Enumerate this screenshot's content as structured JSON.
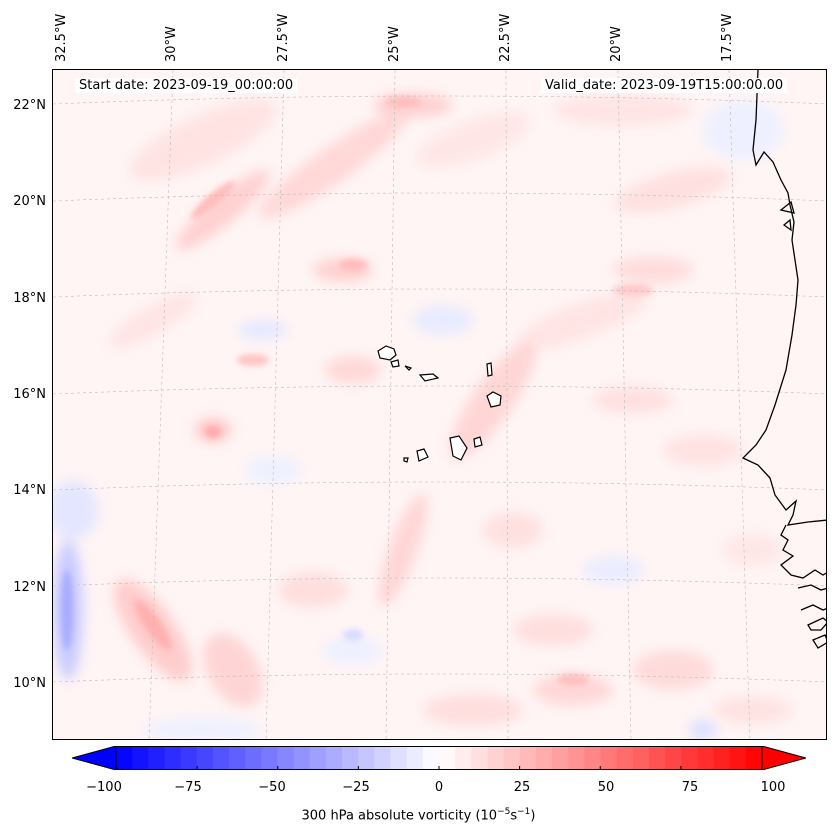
{
  "map": {
    "start_date": "Start date: 2023-09-19_00:00:00",
    "valid_date": "Valid_date: 2023-09-19T15:00:00.00",
    "longitude_labels": [
      "32.5°W",
      "30°W",
      "27.5°W",
      "25°W",
      "22.5°W",
      "20°W",
      "17.5°W"
    ],
    "latitude_labels": [
      "22°N",
      "20°N",
      "18°N",
      "16°N",
      "14°N",
      "12°N",
      "10°N"
    ],
    "gridlines": true,
    "coastline_color": "#000000"
  },
  "colorbar": {
    "label_prefix": "300 hPa absolute vorticity (10",
    "label_exp1": "−5",
    "label_mid": "s",
    "label_exp2": "−1",
    "label_suffix": ")",
    "tick_labels": [
      "−100",
      "−75",
      "−50",
      "−25",
      "0",
      "25",
      "50",
      "75",
      "100"
    ],
    "vmin": -100,
    "vmax": 100,
    "colormap": "bwr",
    "min_color": "#0000ff",
    "mid_color": "#ffffff",
    "max_color": "#ff0000",
    "extend": "both"
  }
}
